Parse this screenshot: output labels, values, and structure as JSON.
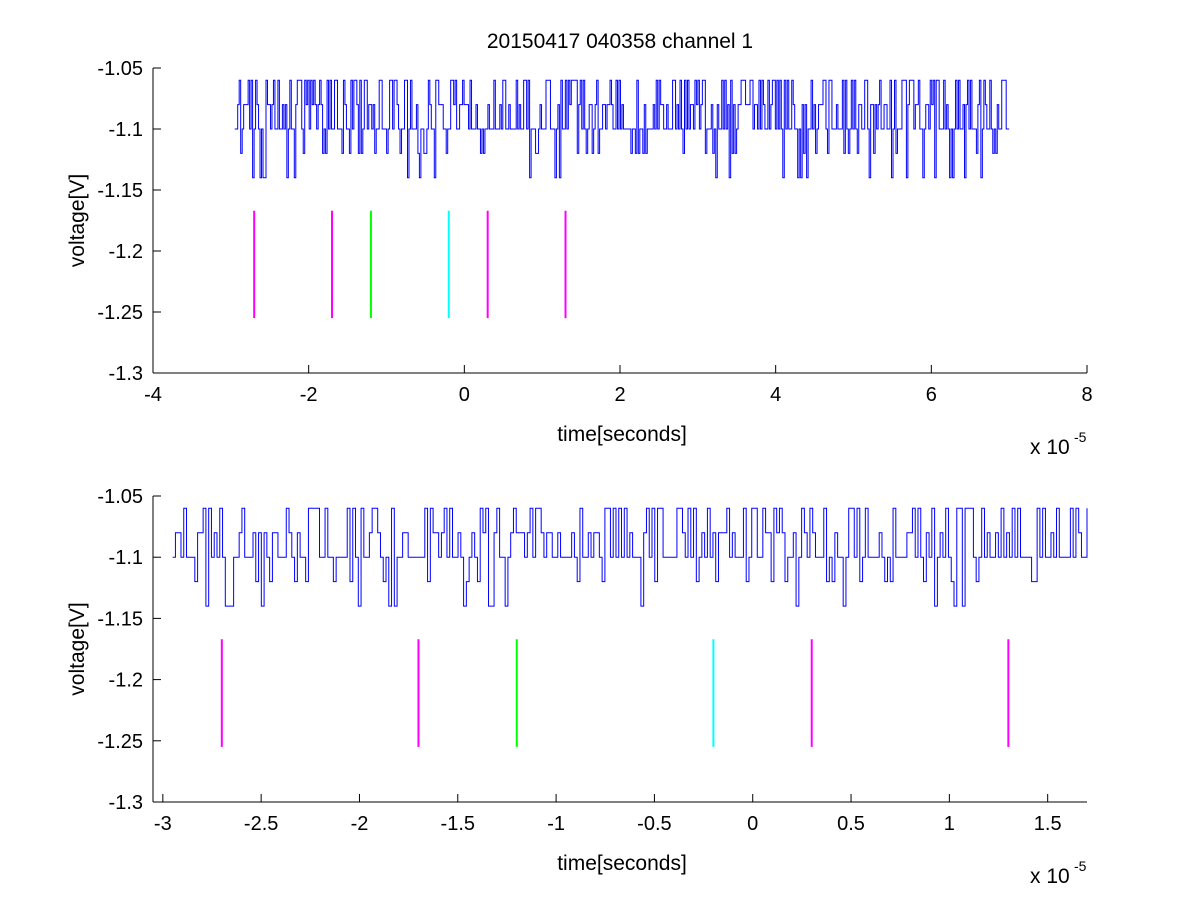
{
  "figure": {
    "title": "20150417 040358 channel 1"
  },
  "chart_data": [
    {
      "type": "line",
      "title": "20150417 040358 channel 1",
      "xlabel": "time[seconds]",
      "ylabel": "voltage[V]",
      "x_multiplier": "x 10",
      "x_multiplier_exp": "-5",
      "xlim": [
        -4,
        8
      ],
      "ylim": [
        -1.3,
        -1.05
      ],
      "xticks": [
        -4,
        -2,
        0,
        2,
        4,
        6,
        8
      ],
      "xtick_labels": [
        "-4",
        "-2",
        "0",
        "2",
        "4",
        "6",
        "8"
      ],
      "yticks": [
        -1.05,
        -1.1,
        -1.15,
        -1.2,
        -1.25,
        -1.3
      ],
      "ytick_labels": [
        "-1.05",
        "-1.1",
        "-1.15",
        "-1.2",
        "-1.25",
        "-1.3"
      ],
      "grid": false,
      "series": [
        {
          "color": "#0000ff",
          "x_range": [
            -2.95,
            7.0
          ],
          "levels": [
            -1.06,
            -1.08,
            -1.1,
            -1.12,
            -1.14
          ],
          "baseline": -1.1,
          "description_values": "noisy trace switching between -1.06 and -1.14 V"
        }
      ],
      "markers": [
        {
          "x": -2.7,
          "y0": -1.167,
          "y1": -1.255,
          "color": "#ff00ff"
        },
        {
          "x": -1.7,
          "y0": -1.167,
          "y1": -1.255,
          "color": "#ff00ff"
        },
        {
          "x": -1.2,
          "y0": -1.167,
          "y1": -1.255,
          "color": "#00ff00"
        },
        {
          "x": -0.2,
          "y0": -1.167,
          "y1": -1.255,
          "color": "#00ffff"
        },
        {
          "x": 0.3,
          "y0": -1.167,
          "y1": -1.255,
          "color": "#ff00ff"
        },
        {
          "x": 1.3,
          "y0": -1.167,
          "y1": -1.255,
          "color": "#ff00ff"
        }
      ]
    },
    {
      "type": "line",
      "title": "",
      "xlabel": "time[seconds]",
      "ylabel": "voltage[V]",
      "x_multiplier": "x 10",
      "x_multiplier_exp": "-5",
      "xlim": [
        -3.05,
        1.7
      ],
      "ylim": [
        -1.3,
        -1.05
      ],
      "xticks": [
        -3,
        -2.5,
        -2,
        -1.5,
        -1,
        -0.5,
        0,
        0.5,
        1,
        1.5
      ],
      "xtick_labels": [
        "-3",
        "-2.5",
        "-2",
        "-1.5",
        "-1",
        "-0.5",
        "0",
        "0.5",
        "1",
        "1.5"
      ],
      "yticks": [
        -1.05,
        -1.1,
        -1.15,
        -1.2,
        -1.25,
        -1.3
      ],
      "ytick_labels": [
        "-1.05",
        "-1.1",
        "-1.15",
        "-1.2",
        "-1.25",
        "-1.3"
      ],
      "grid": false,
      "series": [
        {
          "color": "#0000ff",
          "x_range": [
            -2.95,
            1.7
          ],
          "levels": [
            -1.06,
            -1.08,
            -1.1,
            -1.12,
            -1.14
          ],
          "baseline": -1.1,
          "description_values": "noisy trace switching between -1.06 and -1.14 V"
        }
      ],
      "markers": [
        {
          "x": -2.7,
          "y0": -1.167,
          "y1": -1.255,
          "color": "#ff00ff"
        },
        {
          "x": -1.7,
          "y0": -1.167,
          "y1": -1.255,
          "color": "#ff00ff"
        },
        {
          "x": -1.2,
          "y0": -1.167,
          "y1": -1.255,
          "color": "#00ff00"
        },
        {
          "x": -0.2,
          "y0": -1.167,
          "y1": -1.255,
          "color": "#00ffff"
        },
        {
          "x": 0.3,
          "y0": -1.167,
          "y1": -1.255,
          "color": "#ff00ff"
        },
        {
          "x": 1.3,
          "y0": -1.167,
          "y1": -1.255,
          "color": "#ff00ff"
        }
      ]
    }
  ]
}
